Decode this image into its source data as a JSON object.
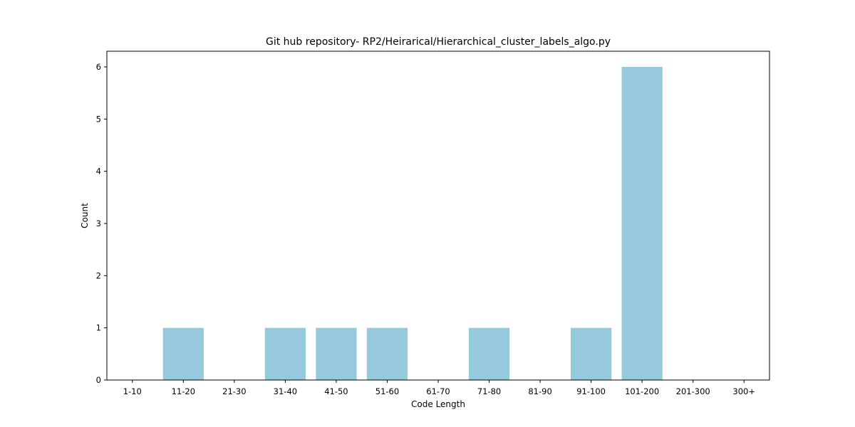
{
  "chart_data": {
    "type": "bar",
    "title": "Git hub repository- RP2/Heirarical/Hierarchical_cluster_labels_algo.py",
    "xlabel": "Code Length",
    "ylabel": "Count",
    "categories": [
      "1-10",
      "11-20",
      "21-30",
      "31-40",
      "41-50",
      "51-60",
      "61-70",
      "71-80",
      "81-90",
      "91-100",
      "101-200",
      "201-300",
      "300+"
    ],
    "values": [
      0,
      1,
      0,
      1,
      1,
      1,
      0,
      1,
      0,
      1,
      6,
      0,
      0
    ],
    "yticks": [
      0,
      1,
      2,
      3,
      4,
      5,
      6
    ],
    "ylim": [
      0,
      6.3
    ],
    "bar_color": "#96c9dc",
    "grid": false,
    "legend": "none"
  }
}
